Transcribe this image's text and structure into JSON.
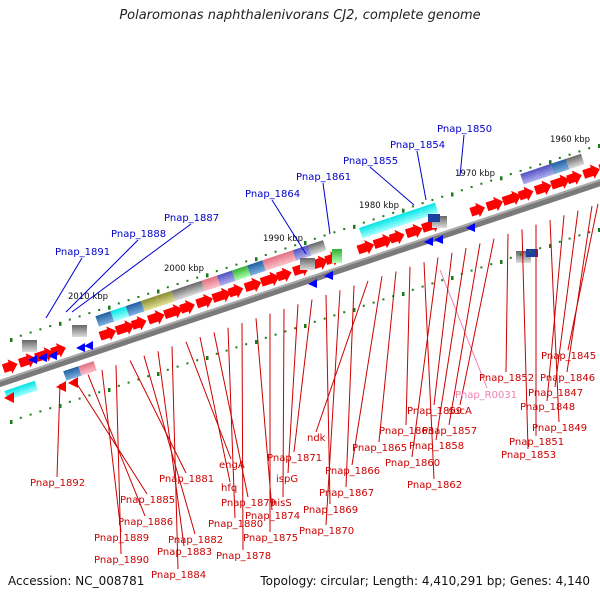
{
  "title": "Polaromonas naphthalenivorans CJ2, complete genome",
  "footer": {
    "accession": "Accession: NC_008781",
    "summary": "Topology: circular; Length: 4,410,291 bp; Genes: 4,140"
  },
  "colors": {
    "backbone": "#777777",
    "forward_gene": "#ff0000",
    "reverse_gene": "#0000ff",
    "label_blue": "#0000cc",
    "label_red": "#cc0000",
    "label_pink": "#f080b0",
    "tick": "#1a7a1a"
  },
  "scale": {
    "labels": [
      "2010 kbp",
      "2000 kbp",
      "1990 kbp",
      "1980 kbp",
      "1970 kbp",
      "1960 kbp"
    ]
  },
  "labels": {
    "blue": [
      "Pnap_1891",
      "Pnap_1888",
      "Pnap_1887",
      "Pnap_1864",
      "Pnap_1861",
      "Pnap_1855",
      "Pnap_1854",
      "Pnap_1850"
    ],
    "pink": [
      "Pnap_R0031"
    ],
    "red": [
      "Pnap_1892",
      "Pnap_1885",
      "Pnap_1886",
      "Pnap_1889",
      "Pnap_1890",
      "Pnap_1881",
      "Pnap_1882",
      "Pnap_1883",
      "Pnap_1884",
      "engA",
      "hfq",
      "Pnap_1879",
      "Pnap_1880",
      "Pnap_1878",
      "Pnap_1874",
      "Pnap_1875",
      "hisS",
      "ispG",
      "Pnap_1871",
      "Pnap_1869",
      "Pnap_1870",
      "Pnap_1867",
      "ndk",
      "Pnap_1866",
      "Pnap_1865",
      "Pnap_1863",
      "Pnap_1862",
      "Pnap_1860",
      "Pnap_1859",
      "Pnap_1858",
      "Pnap_1857",
      "sucA",
      "Pnap_1852",
      "Pnap_1853",
      "Pnap_1851",
      "Pnap_1849",
      "Pnap_1848",
      "Pnap_1847",
      "Pnap_1846",
      "Pnap_1845"
    ]
  }
}
